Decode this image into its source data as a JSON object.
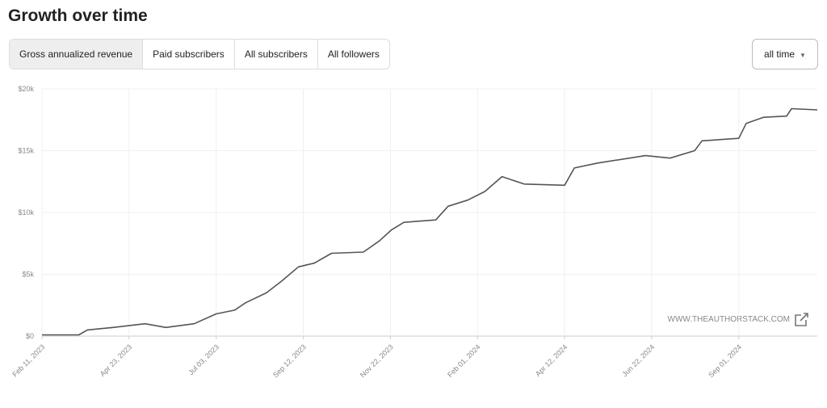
{
  "title": "Growth over time",
  "tabs": [
    "Gross annualized revenue",
    "Paid subscribers",
    "All subscribers",
    "All followers"
  ],
  "range": "all time",
  "chart_data": {
    "type": "line",
    "watermark": "WWW.THEAUTHORSTACK.COM",
    "x": [
      "2023-02-11",
      "2023-03-13",
      "2023-03-20",
      "2023-04-10",
      "2023-05-06",
      "2023-05-23",
      "2023-06-15",
      "2023-07-03",
      "2023-07-18",
      "2023-07-27",
      "2023-08-13",
      "2023-08-26",
      "2023-09-08",
      "2023-09-21",
      "2023-10-05",
      "2023-10-31",
      "2023-11-13",
      "2023-11-23",
      "2023-12-03",
      "2023-12-29",
      "2024-01-08",
      "2024-01-24",
      "2024-02-07",
      "2024-02-21",
      "2024-03-10",
      "2024-04-12",
      "2024-04-20",
      "2024-05-09",
      "2024-06-17",
      "2024-07-07",
      "2024-07-27",
      "2024-08-02",
      "2024-09-01",
      "2024-09-07",
      "2024-09-21",
      "2024-10-10",
      "2024-10-14",
      "2024-11-04"
    ],
    "series": [
      {
        "color": "#555555",
        "values": [
          100,
          100,
          500,
          700,
          1000,
          700,
          1000,
          1800,
          2100,
          2700,
          3500,
          4500,
          5600,
          5900,
          6700,
          6800,
          7700,
          8600,
          9200,
          9400,
          10500,
          11000,
          11700,
          12900,
          12300,
          12200,
          13600,
          14000,
          14600,
          14400,
          15000,
          15800,
          16000,
          17200,
          17700,
          17800,
          18400,
          18300
        ]
      }
    ],
    "xlim": [
      "2023-02-11",
      "2024-11-04"
    ],
    "xticks": [
      {
        "value": "2023-02-11",
        "label": "Feb 11, 2023"
      },
      {
        "value": "2023-04-23",
        "label": "Apr 23, 2023"
      },
      {
        "value": "2023-07-03",
        "label": "Jul 03, 2023"
      },
      {
        "value": "2023-09-12",
        "label": "Sep 12, 2023"
      },
      {
        "value": "2023-11-22",
        "label": "Nov 22, 2023"
      },
      {
        "value": "2024-02-01",
        "label": "Feb 01, 2024"
      },
      {
        "value": "2024-04-12",
        "label": "Apr 12, 2024"
      },
      {
        "value": "2024-06-22",
        "label": "Jun 22, 2024"
      },
      {
        "value": "2024-09-01",
        "label": "Sep 01, 2024"
      }
    ],
    "ylim": [
      0,
      20000
    ],
    "yticks": [
      {
        "value": 0,
        "label": "$0"
      },
      {
        "value": 5000,
        "label": "$5k"
      },
      {
        "value": 10000,
        "label": "$10k"
      },
      {
        "value": 15000,
        "label": "$15k"
      },
      {
        "value": 20000,
        "label": "$20k"
      }
    ],
    "grid": true
  }
}
